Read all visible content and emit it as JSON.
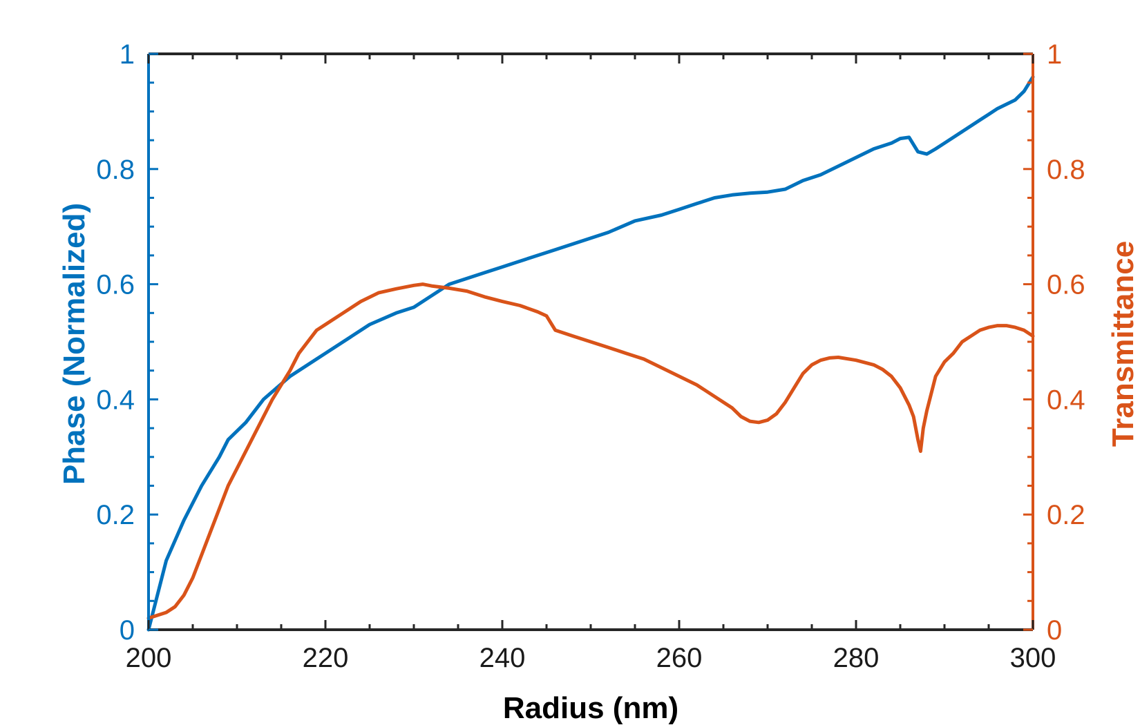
{
  "chart_data": {
    "type": "line",
    "xlabel": "Radius (nm)",
    "ylabel_left": "Phase (Normalized)",
    "ylabel_right": "Transmittance",
    "xlim": [
      200,
      300
    ],
    "ylim_left": [
      0,
      1
    ],
    "ylim_right": [
      0,
      1
    ],
    "x_ticks": [
      "200",
      "220",
      "240",
      "260",
      "280",
      "300"
    ],
    "y_ticks_left": [
      "0",
      "0.2",
      "0.4",
      "0.6",
      "0.8",
      "1"
    ],
    "y_ticks_right": [
      "0",
      "0.2",
      "0.4",
      "0.6",
      "0.8",
      "1"
    ],
    "grid": false,
    "colors": {
      "phase": "#0072BD",
      "transmittance": "#D95319",
      "axis": "#262626"
    },
    "series": [
      {
        "axis": "left",
        "color": "#0072BD",
        "x": [
          200,
          202,
          204,
          206,
          208,
          209,
          211,
          213,
          216,
          219,
          220,
          223,
          225,
          228,
          230,
          232,
          234,
          236,
          238,
          240,
          242,
          244,
          246,
          248,
          250,
          252,
          255,
          258,
          260,
          262,
          264,
          266,
          268,
          270,
          272,
          274,
          276,
          278,
          280,
          282,
          284,
          285,
          286,
          287,
          288,
          289,
          290,
          292,
          294,
          295,
          296,
          298,
          299,
          300
        ],
        "values": [
          0.0,
          0.12,
          0.19,
          0.25,
          0.3,
          0.33,
          0.36,
          0.4,
          0.44,
          0.47,
          0.48,
          0.51,
          0.53,
          0.55,
          0.56,
          0.58,
          0.6,
          0.61,
          0.62,
          0.63,
          0.64,
          0.65,
          0.66,
          0.67,
          0.68,
          0.69,
          0.71,
          0.72,
          0.73,
          0.74,
          0.75,
          0.755,
          0.758,
          0.76,
          0.765,
          0.78,
          0.79,
          0.805,
          0.82,
          0.835,
          0.845,
          0.853,
          0.855,
          0.83,
          0.826,
          0.835,
          0.845,
          0.865,
          0.885,
          0.895,
          0.905,
          0.92,
          0.935,
          0.96
        ]
      },
      {
        "axis": "right",
        "color": "#D95319",
        "x": [
          200,
          202,
          203,
          204,
          205,
          206,
          207,
          208,
          209,
          210,
          212,
          214,
          216,
          217,
          218,
          219,
          220,
          222,
          224,
          226,
          228,
          230,
          231,
          232,
          234,
          236,
          238,
          240,
          242,
          244,
          245,
          246,
          248,
          250,
          252,
          254,
          256,
          258,
          260,
          262,
          264,
          266,
          267,
          268,
          269,
          270,
          271,
          272,
          273,
          274,
          275,
          276,
          277,
          278,
          280,
          282,
          283,
          284,
          285,
          286,
          286.5,
          287,
          287.3,
          287.6,
          288,
          288.5,
          289,
          290,
          291,
          292,
          293,
          294,
          295,
          296,
          297,
          298,
          299,
          300
        ],
        "values": [
          0.02,
          0.03,
          0.04,
          0.06,
          0.09,
          0.13,
          0.17,
          0.21,
          0.25,
          0.28,
          0.34,
          0.4,
          0.45,
          0.48,
          0.5,
          0.52,
          0.53,
          0.55,
          0.57,
          0.585,
          0.592,
          0.598,
          0.6,
          0.597,
          0.593,
          0.588,
          0.578,
          0.57,
          0.563,
          0.552,
          0.545,
          0.52,
          0.51,
          0.5,
          0.49,
          0.48,
          0.47,
          0.455,
          0.44,
          0.425,
          0.405,
          0.385,
          0.37,
          0.362,
          0.36,
          0.364,
          0.375,
          0.395,
          0.42,
          0.445,
          0.46,
          0.468,
          0.472,
          0.473,
          0.468,
          0.46,
          0.452,
          0.44,
          0.42,
          0.39,
          0.37,
          0.33,
          0.31,
          0.35,
          0.38,
          0.41,
          0.44,
          0.465,
          0.48,
          0.5,
          0.51,
          0.52,
          0.525,
          0.528,
          0.528,
          0.525,
          0.52,
          0.51
        ]
      }
    ]
  }
}
